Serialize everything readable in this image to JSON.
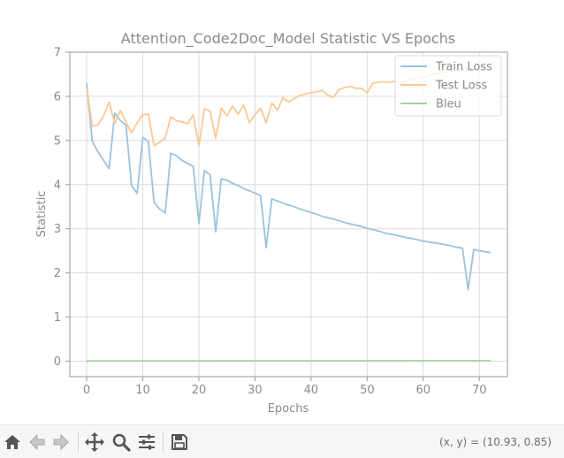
{
  "chart_data": {
    "type": "line",
    "title": "Attention_Code2Doc_Model Statistic VS Epochs",
    "xlabel": "Epochs",
    "ylabel": "Statistic",
    "xlim": [
      -3,
      75
    ],
    "ylim": [
      -0.35,
      7
    ],
    "xticks": [
      0,
      10,
      20,
      30,
      40,
      50,
      60,
      70
    ],
    "yticks": [
      0,
      1,
      2,
      3,
      4,
      5,
      6,
      7
    ],
    "grid": true,
    "legend_position": "top-right",
    "series": [
      {
        "name": "Train Loss",
        "color": "#9cc3dc",
        "x": [
          0,
          1,
          2,
          3,
          4,
          5,
          6,
          7,
          8,
          9,
          10,
          11,
          12,
          13,
          14,
          15,
          16,
          17,
          18,
          19,
          20,
          21,
          22,
          23,
          24,
          25,
          26,
          27,
          28,
          29,
          30,
          31,
          32,
          33,
          34,
          35,
          36,
          37,
          38,
          39,
          40,
          41,
          42,
          43,
          44,
          45,
          46,
          47,
          48,
          49,
          50,
          51,
          52,
          53,
          54,
          55,
          56,
          57,
          58,
          59,
          60,
          61,
          62,
          63,
          64,
          65,
          66,
          67,
          68,
          69,
          70,
          71,
          72
        ],
        "values": [
          6.3,
          4.98,
          4.75,
          4.55,
          4.36,
          5.62,
          5.45,
          5.35,
          3.98,
          3.8,
          5.07,
          4.98,
          3.6,
          3.45,
          3.36,
          4.71,
          4.65,
          4.55,
          4.48,
          4.41,
          3.12,
          4.32,
          4.22,
          2.93,
          4.13,
          4.1,
          4.03,
          3.98,
          3.91,
          3.86,
          3.81,
          3.75,
          2.57,
          3.68,
          3.63,
          3.58,
          3.54,
          3.5,
          3.45,
          3.41,
          3.37,
          3.33,
          3.28,
          3.25,
          3.22,
          3.18,
          3.14,
          3.11,
          3.08,
          3.05,
          3.01,
          2.98,
          2.95,
          2.91,
          2.88,
          2.86,
          2.83,
          2.8,
          2.78,
          2.75,
          2.72,
          2.7,
          2.68,
          2.66,
          2.64,
          2.61,
          2.58,
          2.56,
          1.62,
          2.53,
          2.5,
          2.48,
          2.46
        ]
      },
      {
        "name": "Test Loss",
        "color": "#fdc894",
        "x": [
          0,
          1,
          2,
          3,
          4,
          5,
          6,
          7,
          8,
          9,
          10,
          11,
          12,
          13,
          14,
          15,
          16,
          17,
          18,
          19,
          20,
          21,
          22,
          23,
          24,
          25,
          26,
          27,
          28,
          29,
          30,
          31,
          32,
          33,
          34,
          35,
          36,
          37,
          38,
          39,
          40,
          41,
          42,
          43,
          44,
          45,
          46,
          47,
          48,
          49,
          50,
          51,
          52,
          53,
          54,
          55,
          56,
          57,
          58,
          59,
          60,
          61,
          62,
          63,
          64,
          65,
          66,
          67,
          68,
          69,
          70,
          71,
          72
        ],
        "values": [
          6.2,
          5.32,
          5.35,
          5.55,
          5.87,
          5.38,
          5.68,
          5.42,
          5.18,
          5.4,
          5.58,
          5.6,
          4.88,
          4.96,
          5.05,
          5.53,
          5.45,
          5.42,
          5.38,
          5.58,
          4.88,
          5.72,
          5.66,
          5.05,
          5.73,
          5.56,
          5.78,
          5.6,
          5.8,
          5.4,
          5.58,
          5.73,
          5.4,
          5.85,
          5.68,
          5.97,
          5.87,
          5.95,
          6.02,
          6.05,
          6.08,
          6.1,
          6.13,
          6.02,
          5.98,
          6.15,
          6.2,
          6.22,
          6.18,
          6.18,
          6.08,
          6.3,
          6.32,
          6.33,
          6.32,
          6.34,
          6.3,
          6.36,
          6.4,
          6.42,
          6.44,
          6.47,
          6.5,
          6.52,
          6.54,
          6.56,
          6.58,
          6.6,
          6.62,
          6.64,
          6.66,
          6.68,
          6.7
        ]
      },
      {
        "name": "Bleu",
        "color": "#9fd49f",
        "x": [
          0,
          72
        ],
        "values": [
          0.005,
          0.01
        ]
      }
    ]
  },
  "toolbar": {
    "coord_readout": "(x, y) = (10.93, 0.85)",
    "buttons": [
      {
        "name": "home-button",
        "icon": "home-icon"
      },
      {
        "name": "back-button",
        "icon": "arrow-left-icon"
      },
      {
        "name": "forward-button",
        "icon": "arrow-right-icon"
      },
      {
        "name": "pan-button",
        "icon": "move-icon"
      },
      {
        "name": "zoom-button",
        "icon": "magnifier-icon"
      },
      {
        "name": "configure-subplots-button",
        "icon": "sliders-icon"
      },
      {
        "name": "save-button",
        "icon": "floppy-disk-icon"
      }
    ]
  }
}
